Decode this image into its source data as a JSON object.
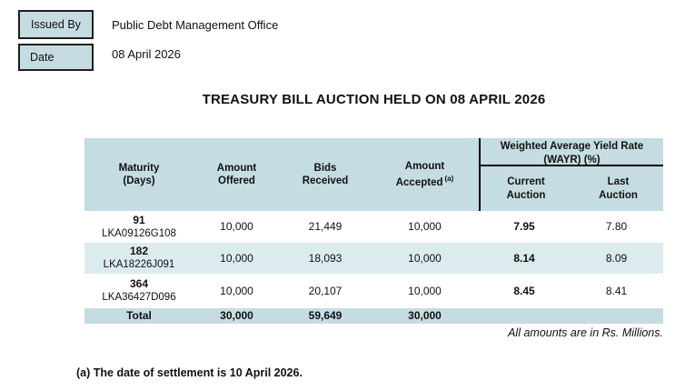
{
  "issued_by": {
    "label": "Issued By",
    "value": "Public Debt Management Office"
  },
  "date": {
    "label": "Date",
    "value": "08 April 2026"
  },
  "title": "TREASURY BILL AUCTION HELD ON 08 APRIL 2026",
  "table": {
    "headers": {
      "maturity_l1": "Maturity",
      "maturity_l2": "(Days)",
      "offered_l1": "Amount",
      "offered_l2": "Offered",
      "bids_l1": "Bids",
      "bids_l2": "Received",
      "accepted_l1": "Amount",
      "accepted_l2": "Accepted",
      "accepted_sup": "(a)",
      "wayr_l1": "Weighted Average Yield Rate",
      "wayr_l2": "(WAYR) (%)",
      "current_l1": "Current",
      "current_l2": "Auction",
      "last_l1": "Last",
      "last_l2": "Auction"
    },
    "rows": [
      {
        "days": "91",
        "isin": "LKA09126G108",
        "offered": "10,000",
        "bids": "21,449",
        "accepted": "10,000",
        "current": "7.95",
        "last": "7.80"
      },
      {
        "days": "182",
        "isin": "LKA18226J091",
        "offered": "10,000",
        "bids": "18,093",
        "accepted": "10,000",
        "current": "8.14",
        "last": "8.09"
      },
      {
        "days": "364",
        "isin": "LKA36427D096",
        "offered": "10,000",
        "bids": "20,107",
        "accepted": "10,000",
        "current": "8.45",
        "last": "8.41"
      }
    ],
    "total": {
      "label": "Total",
      "offered": "30,000",
      "bids": "59,649",
      "accepted": "30,000"
    }
  },
  "note": "All amounts are in Rs. Millions.",
  "footnote": "(a) The date of settlement is 10 April 2026.",
  "colors": {
    "header_fill": "#c5dce2",
    "alt_row_fill": "#dcebee",
    "box_fill": "#c5dce2",
    "rule": "#000000"
  }
}
